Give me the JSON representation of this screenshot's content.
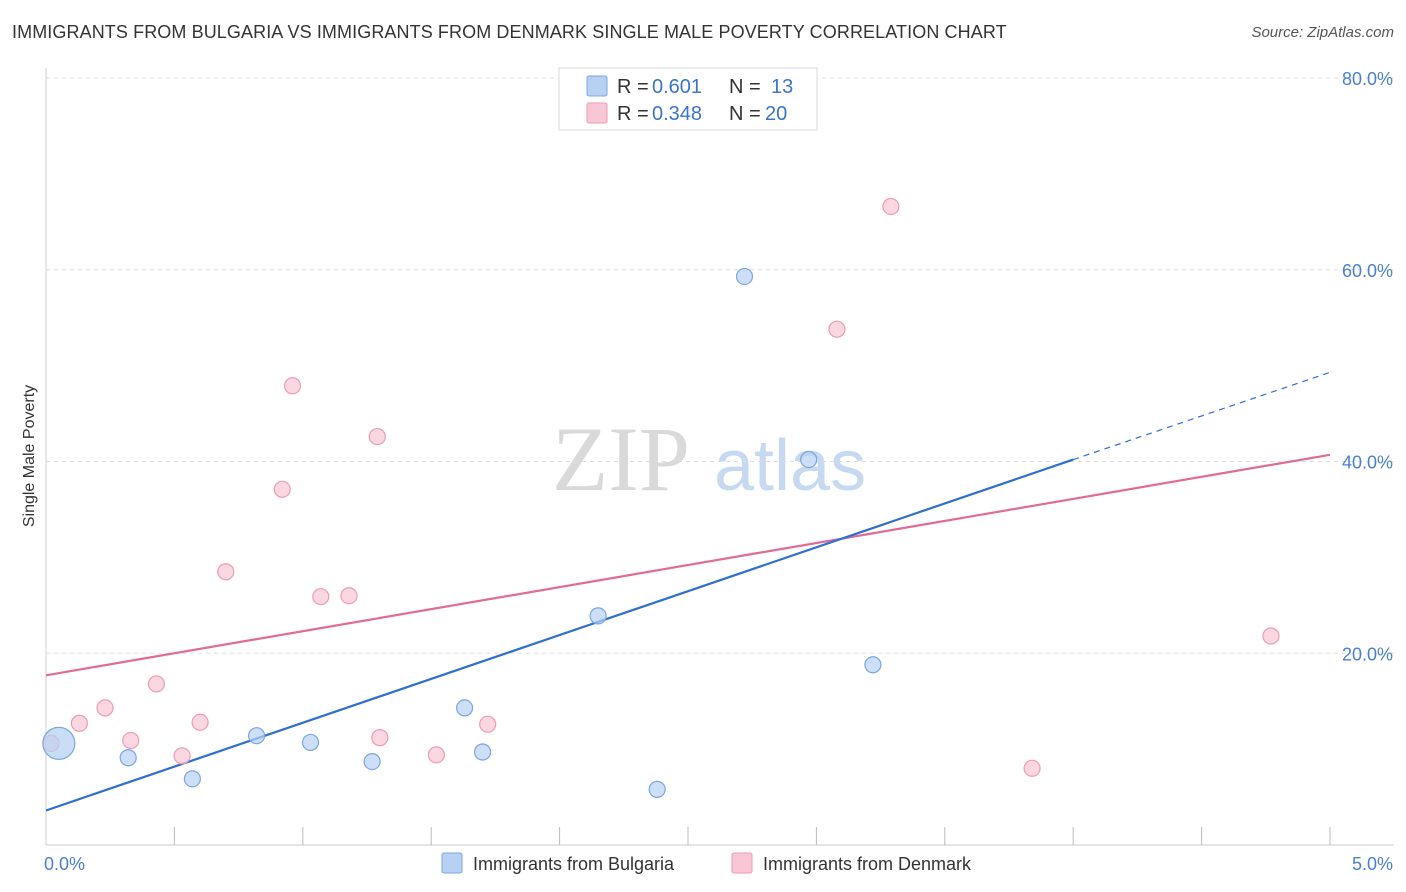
{
  "title": "IMMIGRANTS FROM BULGARIA VS IMMIGRANTS FROM DENMARK SINGLE MALE POVERTY CORRELATION CHART",
  "source": "Source: ZipAtlas.com",
  "watermark": {
    "zip": "ZIP",
    "atlas": "atlas"
  },
  "colors": {
    "bulgaria_fill": "#b7d1f3",
    "bulgaria_stroke": "#7aa5e0",
    "bulgaria_line": "#2e6fd0",
    "denmark_fill": "#f9c6d6",
    "denmark_stroke": "#ef9ab4",
    "denmark_line": "#e06b96",
    "grid": "#dddddd",
    "tick_text": "#4a7fd0"
  },
  "legend_top": {
    "rows": [
      {
        "r_label": "R =",
        "r_value": "0.601",
        "n_label": "N =",
        "n_value": "13",
        "series": "bulgaria"
      },
      {
        "r_label": "R =",
        "r_value": "0.348",
        "n_label": "N =",
        "n_value": "20",
        "series": "denmark"
      }
    ]
  },
  "chart_data": {
    "type": "scatter",
    "title": "IMMIGRANTS FROM BULGARIA VS IMMIGRANTS FROM DENMARK SINGLE MALE POVERTY CORRELATION CHART",
    "xlabel": "",
    "ylabel": "Single Male Poverty",
    "xlim": [
      0,
      5
    ],
    "ylim": [
      0,
      80
    ],
    "x_tick_labels": [
      {
        "value": 0,
        "label": "0.0%"
      },
      {
        "value": 5,
        "label": "5.0%"
      }
    ],
    "x_minor_ticks": [
      0.5,
      1.0,
      1.5,
      2.0,
      2.5,
      3.0,
      3.5,
      4.0,
      4.5,
      5.0
    ],
    "y_ticks": [
      {
        "value": 20,
        "label": "20.0%"
      },
      {
        "value": 40,
        "label": "40.0%"
      },
      {
        "value": 60,
        "label": "60.0%"
      },
      {
        "value": 80,
        "label": "80.0%"
      }
    ],
    "grid": true,
    "legend_position": "bottom-center",
    "series": [
      {
        "name": "Immigrants from Bulgaria",
        "key": "bulgaria",
        "points": [
          {
            "x": 0.05,
            "y": 10.6,
            "large": true
          },
          {
            "x": 0.32,
            "y": 9.1
          },
          {
            "x": 0.57,
            "y": 6.9
          },
          {
            "x": 0.82,
            "y": 11.4
          },
          {
            "x": 1.03,
            "y": 10.7
          },
          {
            "x": 1.27,
            "y": 8.7
          },
          {
            "x": 1.63,
            "y": 14.3
          },
          {
            "x": 1.7,
            "y": 9.7
          },
          {
            "x": 2.15,
            "y": 23.9
          },
          {
            "x": 2.38,
            "y": 5.8
          },
          {
            "x": 2.72,
            "y": 59.3
          },
          {
            "x": 2.97,
            "y": 40.2
          },
          {
            "x": 3.22,
            "y": 18.8
          }
        ],
        "trend": {
          "x0": 0.0,
          "y0": 3.6,
          "x1": 4.0,
          "y1": 40.2,
          "dash_x1": 5.0,
          "dash_y1": 49.3
        }
      },
      {
        "name": "Immigrants from Denmark",
        "key": "denmark",
        "points": [
          {
            "x": 0.02,
            "y": 10.6
          },
          {
            "x": 0.13,
            "y": 12.7
          },
          {
            "x": 0.23,
            "y": 14.3
          },
          {
            "x": 0.33,
            "y": 10.9
          },
          {
            "x": 0.43,
            "y": 16.8
          },
          {
            "x": 0.53,
            "y": 9.3
          },
          {
            "x": 0.6,
            "y": 12.8
          },
          {
            "x": 0.7,
            "y": 28.5
          },
          {
            "x": 0.92,
            "y": 37.1
          },
          {
            "x": 0.96,
            "y": 47.9
          },
          {
            "x": 1.07,
            "y": 25.9
          },
          {
            "x": 1.18,
            "y": 26.0
          },
          {
            "x": 1.29,
            "y": 42.6
          },
          {
            "x": 1.3,
            "y": 11.2
          },
          {
            "x": 1.52,
            "y": 9.4
          },
          {
            "x": 1.72,
            "y": 12.6
          },
          {
            "x": 3.08,
            "y": 53.8
          },
          {
            "x": 3.29,
            "y": 66.6
          },
          {
            "x": 3.84,
            "y": 8.0
          },
          {
            "x": 4.77,
            "y": 21.8
          }
        ],
        "trend": {
          "x0": 0.0,
          "y0": 17.7,
          "x1": 5.0,
          "y1": 40.7
        }
      }
    ]
  }
}
